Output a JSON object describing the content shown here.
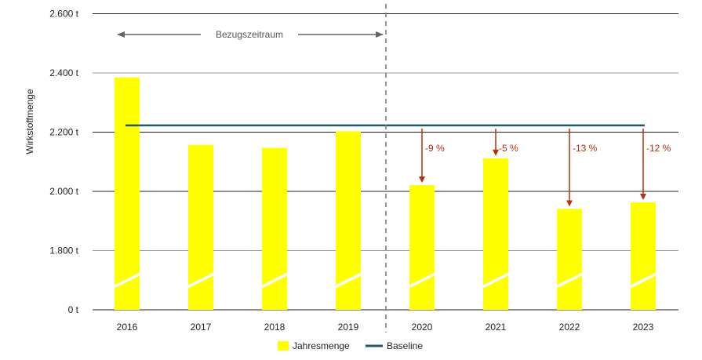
{
  "chart_data": {
    "type": "bar",
    "ylabel": "Wirkstoffmenge",
    "unit": "t",
    "categories": [
      "2016",
      "2017",
      "2018",
      "2019",
      "2020",
      "2021",
      "2022",
      "2023"
    ],
    "y_ticks": [
      "0 t",
      "1.800 t",
      "2.000 t",
      "2.200 t",
      "2.400 t",
      "2.600 t"
    ],
    "axis_break": true,
    "series": [
      {
        "name": "Jahresmenge",
        "type": "bar",
        "color": "#ffff00",
        "values": [
          2385,
          2157,
          2147,
          2203,
          2021,
          2112,
          1941,
          1963
        ]
      },
      {
        "name": "Baseline",
        "type": "line",
        "color": "#1f5a66",
        "values": [
          2223,
          2223,
          2223,
          2223,
          2223,
          2223,
          2223,
          2223
        ]
      }
    ],
    "annotations": {
      "reference_period_label": "Bezugszeitraum",
      "reduction_labels": [
        "-9 %",
        "-5 %",
        "-13 %",
        "-12 %"
      ],
      "reduction_years": [
        "2020",
        "2021",
        "2022",
        "2023"
      ],
      "arrow_color": "#b5300b"
    },
    "grid": true,
    "legend_position": "bottom-center"
  }
}
